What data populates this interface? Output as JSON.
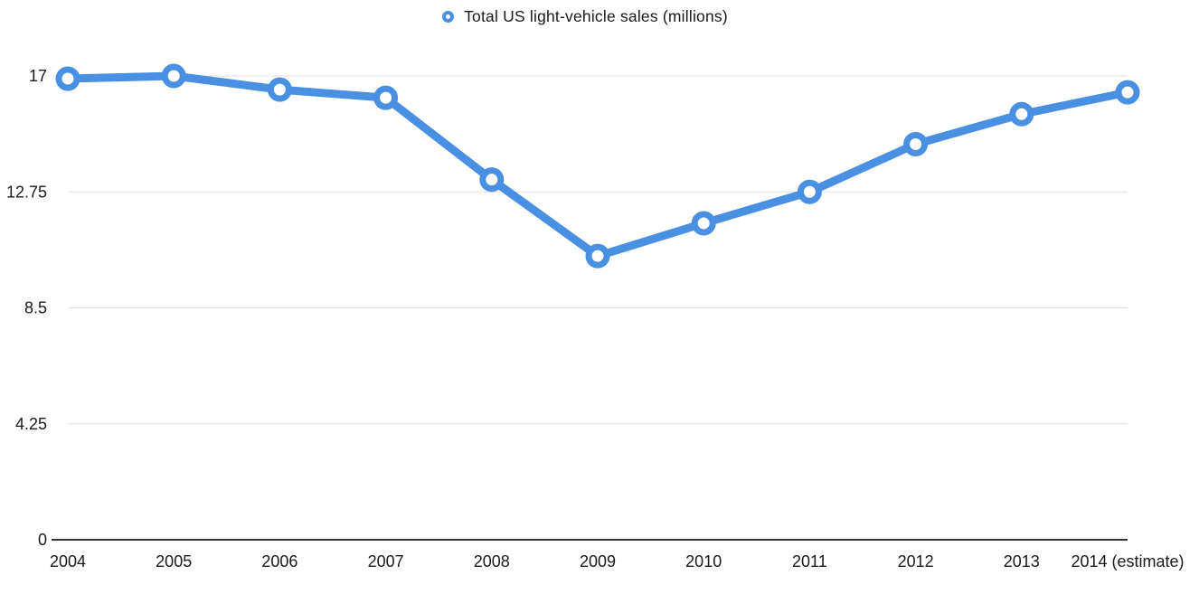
{
  "chart_data": {
    "type": "line",
    "title": "",
    "legend_position": "top-center",
    "grid": true,
    "categories": [
      "2004",
      "2005",
      "2006",
      "2007",
      "2008",
      "2009",
      "2010",
      "2011",
      "2012",
      "2013",
      "2014 (estimate)"
    ],
    "series": [
      {
        "name": "Total US light-vehicle sales (millions)",
        "values": [
          16.9,
          17,
          16.5,
          16.2,
          13.2,
          10.4,
          11.6,
          12.75,
          14.5,
          15.6,
          16.4
        ]
      }
    ],
    "ylim": [
      0,
      17
    ],
    "yticks": [
      0,
      4.25,
      8.5,
      12.75,
      17
    ],
    "ytick_labels": [
      "0",
      "4.25",
      "8.5",
      "12.75",
      "17"
    ],
    "colors": {
      "line": "#4A90E2",
      "marker_fill": "#FFFFFF",
      "grid": "#E0E0E0",
      "axis": "#333333",
      "text": "#1A1A1A"
    }
  }
}
